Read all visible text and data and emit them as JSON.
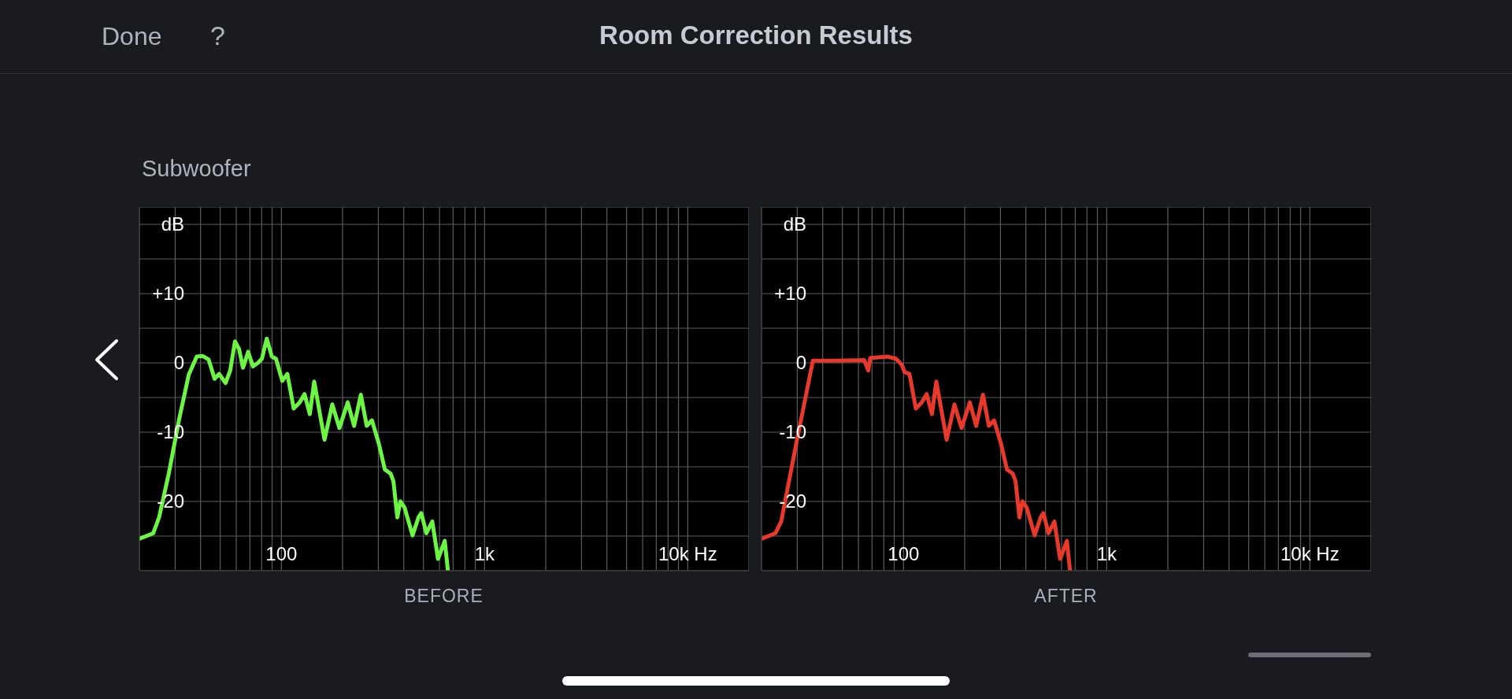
{
  "chart_data": [
    {
      "type": "line",
      "title": "Room Correction Results",
      "subtitle": "Subwoofer",
      "xlabel": "BEFORE",
      "annotations": [
        "Done",
        "?"
      ],
      "log": "x",
      "grid": true,
      "xlim": [
        20,
        20000
      ],
      "ylim": [
        -30,
        22.5
      ],
      "xticks": [
        {
          "value": 20,
          "label": null
        },
        {
          "value": 30,
          "label": null
        },
        {
          "value": 40,
          "label": null
        },
        {
          "value": 50,
          "label": null
        },
        {
          "value": 60,
          "label": null
        },
        {
          "value": 70,
          "label": null
        },
        {
          "value": 80,
          "label": null
        },
        {
          "value": 90,
          "label": null
        },
        100,
        {
          "value": 200,
          "label": null
        },
        {
          "value": 300,
          "label": null
        },
        {
          "value": 400,
          "label": null
        },
        {
          "value": 500,
          "label": null
        },
        {
          "value": 600,
          "label": null
        },
        {
          "value": 700,
          "label": null
        },
        {
          "value": 800,
          "label": null
        },
        {
          "value": 900,
          "label": null
        },
        {
          "value": 1000,
          "label": "1k"
        },
        {
          "value": 2000,
          "label": null
        },
        {
          "value": 3000,
          "label": null
        },
        {
          "value": 4000,
          "label": null
        },
        {
          "value": 5000,
          "label": null
        },
        {
          "value": 6000,
          "label": null
        },
        {
          "value": 7000,
          "label": null
        },
        {
          "value": 8000,
          "label": null
        },
        {
          "value": 9000,
          "label": null
        },
        {
          "value": 10000,
          "label": "10k Hz"
        },
        {
          "value": 20000,
          "label": null
        }
      ],
      "yticks": [
        {
          "value": -25,
          "label": null
        },
        -20,
        -10,
        {
          "value": -15,
          "label": null
        },
        {
          "value": -5,
          "label": null
        },
        0,
        {
          "value": 5,
          "label": null
        },
        {
          "value": 10,
          "label": "+10"
        },
        {
          "value": 15,
          "label": null
        },
        {
          "value": 20,
          "label": "dB"
        }
      ],
      "series": [
        {
          "color": "#6cf542",
          "x": [
            20,
            23.4,
            25,
            27.9,
            31.3,
            35,
            38.3,
            40.9,
            43.8,
            46.9,
            49.4,
            53.1,
            56,
            59.1,
            61.9,
            64.7,
            68.6,
            72.4,
            76.7,
            80.2,
            84.7,
            89.8,
            94,
            101,
            107,
            115,
            123,
            130,
            138,
            145,
            163,
            178,
            193,
            212,
            228,
            246,
            263,
            279,
            302,
            323,
            345,
            356,
            372,
            385,
            404,
            442,
            473,
            488,
            517,
            553,
            590,
            637,
            660
          ],
          "values": [
            -25.4,
            -24.6,
            -22.3,
            -16,
            -8.3,
            -1.7,
            0.9,
            1,
            0.5,
            -2.3,
            -1.6,
            -2.9,
            -1.1,
            3.1,
            2,
            -0.7,
            1.6,
            -0.5,
            0,
            0.6,
            3.5,
            0.9,
            0.6,
            -2.6,
            -1.6,
            -6.6,
            -5.7,
            -4.5,
            -7.4,
            -2.7,
            -11.1,
            -6,
            -9.4,
            -5.7,
            -9.1,
            -4.6,
            -9.1,
            -8.3,
            -11.7,
            -15.4,
            -16,
            -17.1,
            -22.3,
            -20,
            -20.9,
            -24.9,
            -22.3,
            -21.7,
            -24.6,
            -22.9,
            -28.3,
            -25.7,
            -30
          ]
        }
      ]
    },
    {
      "type": "line",
      "xlabel": "AFTER",
      "log": "x",
      "grid": true,
      "xlim": [
        20,
        20000
      ],
      "ylim": [
        -30,
        22.5
      ],
      "xticks": [
        {
          "value": 20,
          "label": null
        },
        {
          "value": 30,
          "label": null
        },
        {
          "value": 40,
          "label": null
        },
        {
          "value": 50,
          "label": null
        },
        {
          "value": 60,
          "label": null
        },
        {
          "value": 70,
          "label": null
        },
        {
          "value": 80,
          "label": null
        },
        {
          "value": 90,
          "label": null
        },
        100,
        {
          "value": 200,
          "label": null
        },
        {
          "value": 300,
          "label": null
        },
        {
          "value": 400,
          "label": null
        },
        {
          "value": 500,
          "label": null
        },
        {
          "value": 600,
          "label": null
        },
        {
          "value": 700,
          "label": null
        },
        {
          "value": 800,
          "label": null
        },
        {
          "value": 900,
          "label": null
        },
        {
          "value": 1000,
          "label": "1k"
        },
        {
          "value": 2000,
          "label": null
        },
        {
          "value": 3000,
          "label": null
        },
        {
          "value": 4000,
          "label": null
        },
        {
          "value": 5000,
          "label": null
        },
        {
          "value": 6000,
          "label": null
        },
        {
          "value": 7000,
          "label": null
        },
        {
          "value": 8000,
          "label": null
        },
        {
          "value": 9000,
          "label": null
        },
        {
          "value": 10000,
          "label": "10k Hz"
        },
        {
          "value": 20000,
          "label": null
        }
      ],
      "yticks": [
        {
          "value": -25,
          "label": null
        },
        -20,
        -10,
        {
          "value": -15,
          "label": null
        },
        {
          "value": -5,
          "label": null
        },
        0,
        {
          "value": 5,
          "label": null
        },
        {
          "value": 10,
          "label": "+10"
        },
        {
          "value": 15,
          "label": null
        },
        {
          "value": 20,
          "label": "dB"
        }
      ],
      "series": [
        {
          "color": "#e8392a",
          "x": [
            20,
            23.4,
            25,
            29.9,
            35.8,
            46.9,
            64.1,
            67,
            68.6,
            83.9,
            91.8,
            98.2,
            101,
            107,
            115,
            123,
            130,
            138,
            145,
            163,
            178,
            193,
            212,
            228,
            246,
            263,
            279,
            302,
            323,
            345,
            356,
            372,
            385,
            404,
            442,
            473,
            488,
            517,
            553,
            590,
            637,
            660
          ],
          "values": [
            -25.4,
            -24.6,
            -22.9,
            -11.1,
            0.3,
            0.3,
            0.4,
            -1.1,
            0.7,
            0.9,
            0.6,
            -0.3,
            -1.3,
            -1.6,
            -6.6,
            -5.7,
            -4.5,
            -7.4,
            -2.7,
            -11.1,
            -6,
            -9.4,
            -5.7,
            -9.1,
            -4.6,
            -9.1,
            -8.3,
            -11.7,
            -15.4,
            -16,
            -17.1,
            -22.3,
            -20,
            -20.9,
            -24.9,
            -22.3,
            -21.7,
            -24.6,
            -22.9,
            -28.3,
            -25.7,
            -30
          ]
        }
      ]
    }
  ]
}
